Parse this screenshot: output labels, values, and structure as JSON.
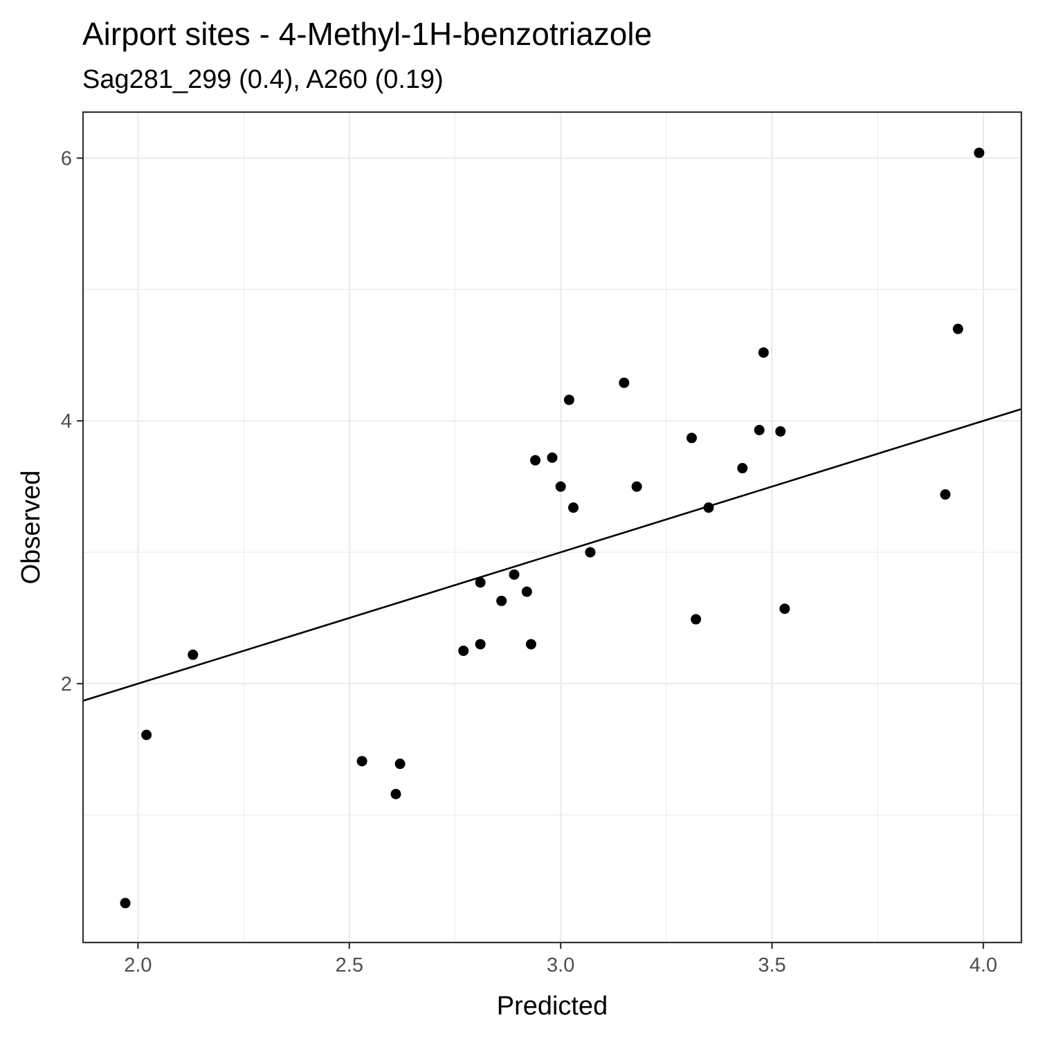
{
  "chart_data": {
    "type": "scatter",
    "title": "Airport sites - 4-Methyl-1H-benzotriazole",
    "subtitle": "Sag281_299 (0.4), A260 (0.19)",
    "xlabel": "Predicted",
    "ylabel": "Observed",
    "xlim": [
      1.87,
      4.09
    ],
    "ylim": [
      0.03,
      6.35
    ],
    "x_ticks": [
      2.0,
      2.5,
      3.0,
      3.5,
      4.0
    ],
    "x_tick_labels": [
      "2.0",
      "2.5",
      "3.0",
      "3.5",
      "4.0"
    ],
    "y_ticks": [
      2,
      4,
      6
    ],
    "y_tick_labels": [
      "2",
      "4",
      "6"
    ],
    "grid": true,
    "points": [
      {
        "x": 1.97,
        "y": 0.33
      },
      {
        "x": 2.02,
        "y": 1.61
      },
      {
        "x": 2.13,
        "y": 2.22
      },
      {
        "x": 2.53,
        "y": 1.41
      },
      {
        "x": 2.61,
        "y": 1.16
      },
      {
        "x": 2.62,
        "y": 1.39
      },
      {
        "x": 2.77,
        "y": 2.25
      },
      {
        "x": 2.81,
        "y": 2.3
      },
      {
        "x": 2.81,
        "y": 2.77
      },
      {
        "x": 2.86,
        "y": 2.63
      },
      {
        "x": 2.89,
        "y": 2.83
      },
      {
        "x": 2.92,
        "y": 2.7
      },
      {
        "x": 2.93,
        "y": 2.3
      },
      {
        "x": 2.94,
        "y": 3.7
      },
      {
        "x": 2.98,
        "y": 3.72
      },
      {
        "x": 3.0,
        "y": 3.5
      },
      {
        "x": 3.02,
        "y": 4.16
      },
      {
        "x": 3.03,
        "y": 3.34
      },
      {
        "x": 3.07,
        "y": 3.0
      },
      {
        "x": 3.15,
        "y": 4.29
      },
      {
        "x": 3.18,
        "y": 3.5
      },
      {
        "x": 3.31,
        "y": 3.87
      },
      {
        "x": 3.32,
        "y": 2.49
      },
      {
        "x": 3.35,
        "y": 3.34
      },
      {
        "x": 3.43,
        "y": 3.64
      },
      {
        "x": 3.47,
        "y": 3.93
      },
      {
        "x": 3.48,
        "y": 4.52
      },
      {
        "x": 3.52,
        "y": 3.92
      },
      {
        "x": 3.53,
        "y": 2.57
      },
      {
        "x": 3.91,
        "y": 3.44
      },
      {
        "x": 3.94,
        "y": 4.7
      },
      {
        "x": 3.99,
        "y": 6.04
      }
    ],
    "reference_line": {
      "slope": 1,
      "intercept": 0
    }
  }
}
